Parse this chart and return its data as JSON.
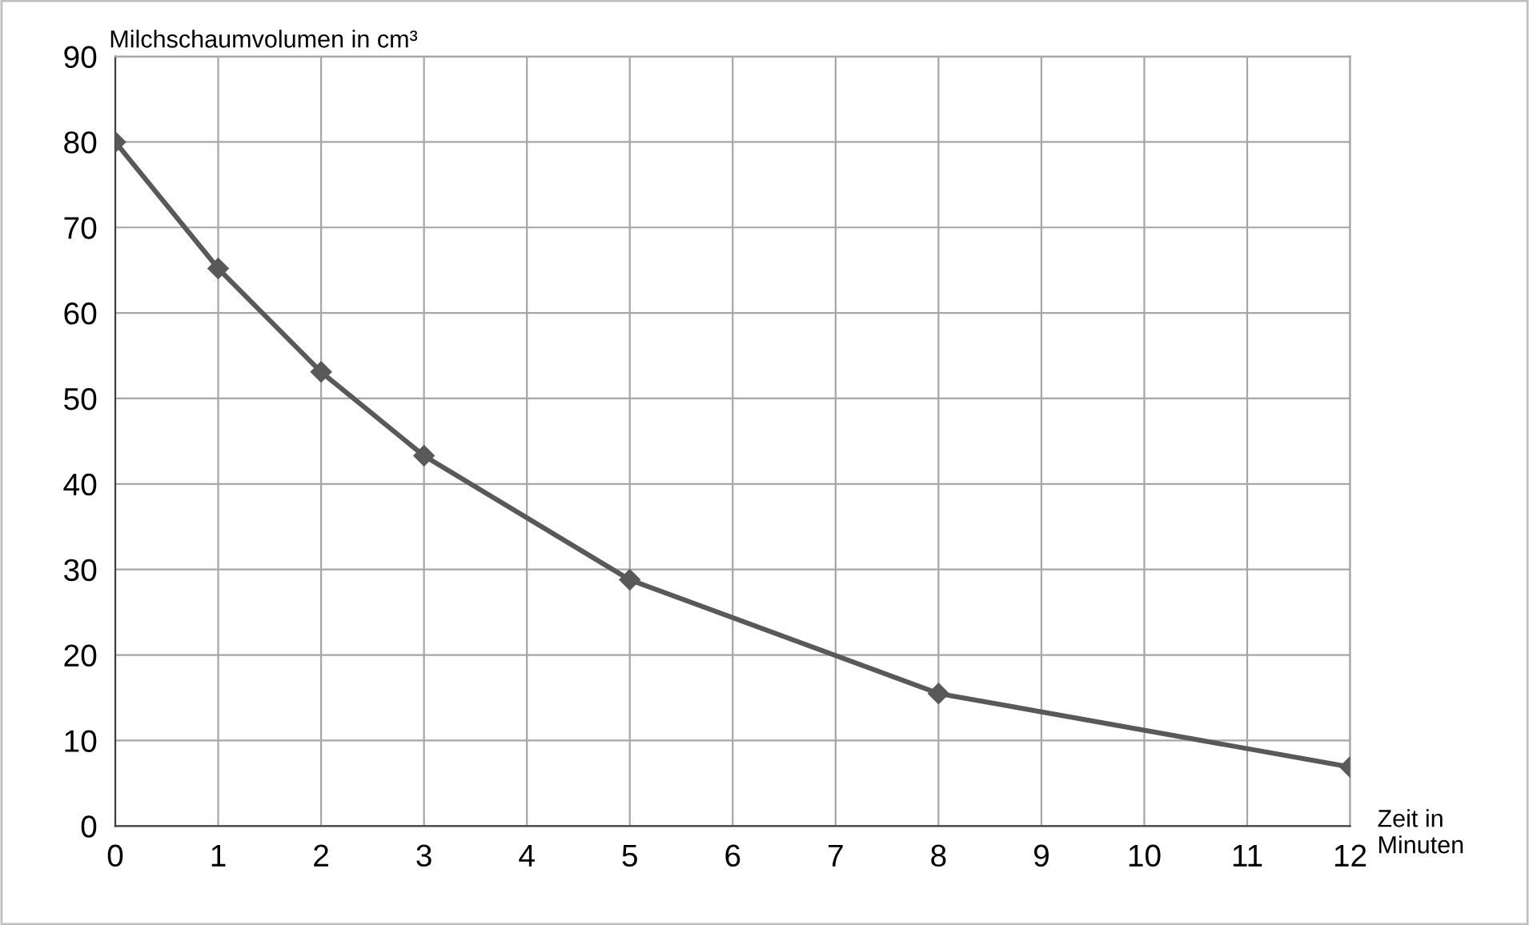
{
  "chart_data": {
    "type": "line",
    "xlabel": "Zeit in\nMinuten",
    "ylabel": "Milchschaumvolumen in cm³",
    "x": [
      0,
      1,
      2,
      3,
      5,
      8,
      12
    ],
    "series": [
      {
        "color": "#595959",
        "values": [
          80,
          65.2,
          53.1,
          43.3,
          28.8,
          15.5,
          6.9
        ]
      }
    ],
    "xlim": [
      0,
      12
    ],
    "xticks": [
      0,
      1,
      2,
      3,
      4,
      5,
      6,
      7,
      8,
      9,
      10,
      11,
      12
    ],
    "ylim": [
      0,
      90
    ],
    "yticks": [
      0,
      10,
      20,
      30,
      40,
      50,
      60,
      70,
      80,
      90
    ],
    "grid": true,
    "marker": "diamond",
    "line_style": "solid",
    "legend": false
  }
}
